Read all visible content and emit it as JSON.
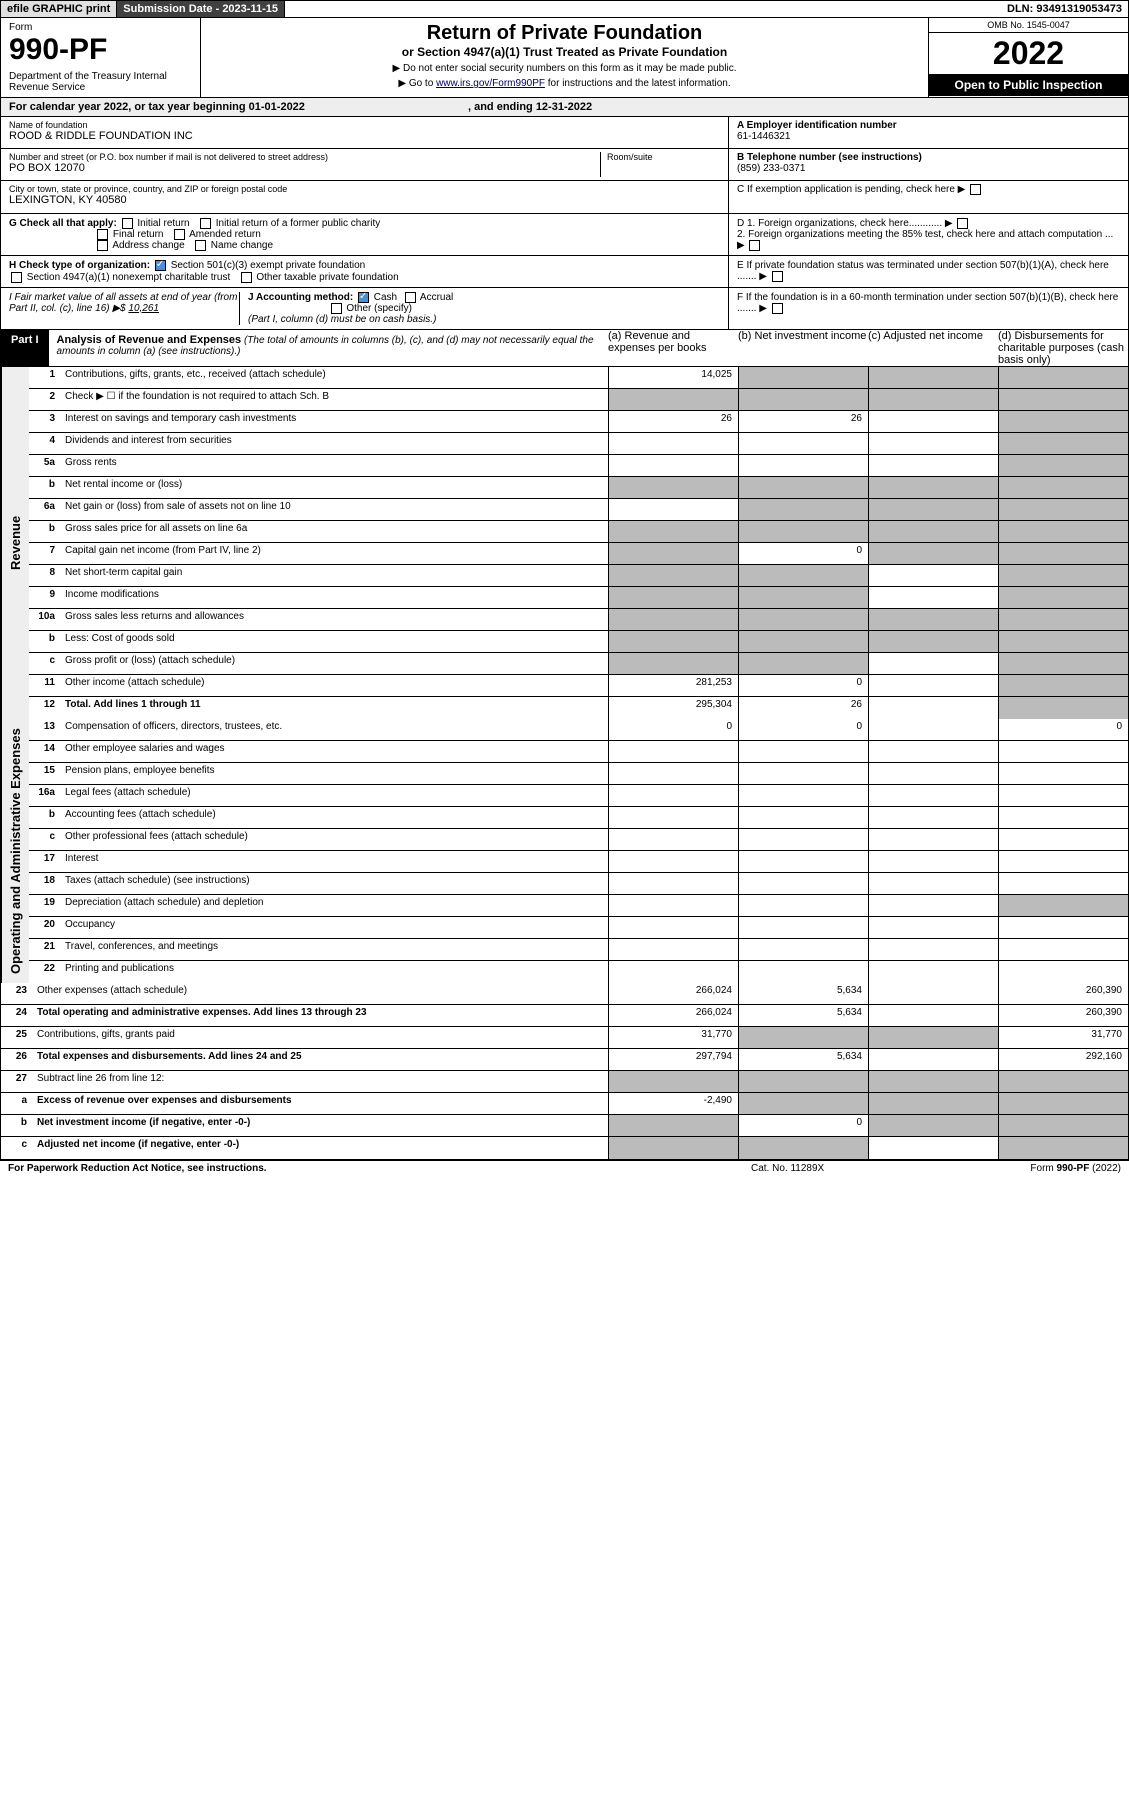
{
  "topbar": {
    "efile": "efile GRAPHIC print",
    "submission": "Submission Date - 2023-11-15",
    "dln": "DLN: 93491319053473"
  },
  "header": {
    "form": "Form",
    "formno": "990-PF",
    "dept": "Department of the Treasury\nInternal Revenue Service",
    "title": "Return of Private Foundation",
    "subtitle": "or Section 4947(a)(1) Trust Treated as Private Foundation",
    "note1": "▶ Do not enter social security numbers on this form as it may be made public.",
    "note2": "▶ Go to www.irs.gov/Form990PF for instructions and the latest information.",
    "omb": "OMB No. 1545-0047",
    "year": "2022",
    "open": "Open to Public Inspection"
  },
  "calyear": {
    "text": "For calendar year 2022, or tax year beginning 01-01-2022",
    "ending": ", and ending 12-31-2022"
  },
  "id": {
    "name_lbl": "Name of foundation",
    "name": "ROOD & RIDDLE FOUNDATION INC",
    "addr_lbl": "Number and street (or P.O. box number if mail is not delivered to street address)",
    "addr": "PO BOX 12070",
    "room_lbl": "Room/suite",
    "city_lbl": "City or town, state or province, country, and ZIP or foreign postal code",
    "city": "LEXINGTON, KY  40580",
    "ein_lbl": "A Employer identification number",
    "ein": "61-1446321",
    "tel_lbl": "B Telephone number (see instructions)",
    "tel": "(859) 233-0371",
    "c": "C If exemption application is pending, check here",
    "d1": "D 1. Foreign organizations, check here............",
    "d2": "2. Foreign organizations meeting the 85% test, check here and attach computation ...",
    "e": "E If private foundation status was terminated under section 507(b)(1)(A), check here .......",
    "f": "F If the foundation is in a 60-month termination under section 507(b)(1)(B), check here ......."
  },
  "checks": {
    "g_lbl": "G Check all that apply:",
    "g_opts": [
      "Initial return",
      "Initial return of a former public charity",
      "Final return",
      "Amended return",
      "Address change",
      "Name change"
    ],
    "h_lbl": "H Check type of organization:",
    "h_opts": [
      "Section 501(c)(3) exempt private foundation",
      "Section 4947(a)(1) nonexempt charitable trust",
      "Other taxable private foundation"
    ],
    "i_lbl": "I Fair market value of all assets at end of year (from Part II, col. (c), line 16) ▶$",
    "i_val": "10,261",
    "j_lbl": "J Accounting method:",
    "j_opts": [
      "Cash",
      "Accrual",
      "Other (specify)"
    ],
    "j_note": "(Part I, column (d) must be on cash basis.)"
  },
  "part1": {
    "label": "Part I",
    "title": "Analysis of Revenue and Expenses",
    "note": "(The total of amounts in columns (b), (c), and (d) may not necessarily equal the amounts in column (a) (see instructions).)",
    "cols": [
      "(a) Revenue and expenses per books",
      "(b) Net investment income",
      "(c) Adjusted net income",
      "(d) Disbursements for charitable purposes (cash basis only)"
    ]
  },
  "sides": {
    "rev": "Revenue",
    "ope": "Operating and Administrative Expenses"
  },
  "rows": [
    {
      "n": "1",
      "t": "Contributions, gifts, grants, etc., received (attach schedule)",
      "a": "14,025",
      "b": "",
      "c": "",
      "d": "",
      "sb": true,
      "sc": true,
      "sd": true
    },
    {
      "n": "2",
      "t": "Check ▶ ☐ if the foundation is not required to attach Sch. B",
      "a": "",
      "b": "",
      "c": "",
      "d": "",
      "sa": true,
      "sb": true,
      "sc": true,
      "sd": true
    },
    {
      "n": "3",
      "t": "Interest on savings and temporary cash investments",
      "a": "26",
      "b": "26",
      "c": "",
      "d": "",
      "sd": true
    },
    {
      "n": "4",
      "t": "Dividends and interest from securities",
      "a": "",
      "b": "",
      "c": "",
      "d": "",
      "sd": true
    },
    {
      "n": "5a",
      "t": "Gross rents",
      "a": "",
      "b": "",
      "c": "",
      "d": "",
      "sd": true
    },
    {
      "n": "b",
      "t": "Net rental income or (loss)",
      "a": "",
      "b": "",
      "c": "",
      "d": "",
      "sa": true,
      "sb": true,
      "sc": true,
      "sd": true
    },
    {
      "n": "6a",
      "t": "Net gain or (loss) from sale of assets not on line 10",
      "a": "",
      "b": "",
      "c": "",
      "d": "",
      "sb": true,
      "sc": true,
      "sd": true
    },
    {
      "n": "b",
      "t": "Gross sales price for all assets on line 6a",
      "a": "",
      "b": "",
      "c": "",
      "d": "",
      "sa": true,
      "sb": true,
      "sc": true,
      "sd": true
    },
    {
      "n": "7",
      "t": "Capital gain net income (from Part IV, line 2)",
      "a": "",
      "b": "0",
      "c": "",
      "d": "",
      "sa": true,
      "sc": true,
      "sd": true
    },
    {
      "n": "8",
      "t": "Net short-term capital gain",
      "a": "",
      "b": "",
      "c": "",
      "d": "",
      "sa": true,
      "sb": true,
      "sd": true
    },
    {
      "n": "9",
      "t": "Income modifications",
      "a": "",
      "b": "",
      "c": "",
      "d": "",
      "sa": true,
      "sb": true,
      "sd": true
    },
    {
      "n": "10a",
      "t": "Gross sales less returns and allowances",
      "a": "",
      "b": "",
      "c": "",
      "d": "",
      "sa": true,
      "sb": true,
      "sc": true,
      "sd": true
    },
    {
      "n": "b",
      "t": "Less: Cost of goods sold",
      "a": "",
      "b": "",
      "c": "",
      "d": "",
      "sa": true,
      "sb": true,
      "sc": true,
      "sd": true
    },
    {
      "n": "c",
      "t": "Gross profit or (loss) (attach schedule)",
      "a": "",
      "b": "",
      "c": "",
      "d": "",
      "sa": true,
      "sb": true,
      "sd": true
    },
    {
      "n": "11",
      "t": "Other income (attach schedule)",
      "a": "281,253",
      "b": "0",
      "c": "",
      "d": "",
      "sd": true
    },
    {
      "n": "12",
      "t": "Total. Add lines 1 through 11",
      "a": "295,304",
      "b": "26",
      "c": "",
      "d": "",
      "sd": true,
      "bold": true
    },
    {
      "n": "13",
      "t": "Compensation of officers, directors, trustees, etc.",
      "a": "0",
      "b": "0",
      "c": "",
      "d": "0"
    },
    {
      "n": "14",
      "t": "Other employee salaries and wages",
      "a": "",
      "b": "",
      "c": "",
      "d": ""
    },
    {
      "n": "15",
      "t": "Pension plans, employee benefits",
      "a": "",
      "b": "",
      "c": "",
      "d": ""
    },
    {
      "n": "16a",
      "t": "Legal fees (attach schedule)",
      "a": "",
      "b": "",
      "c": "",
      "d": ""
    },
    {
      "n": "b",
      "t": "Accounting fees (attach schedule)",
      "a": "",
      "b": "",
      "c": "",
      "d": ""
    },
    {
      "n": "c",
      "t": "Other professional fees (attach schedule)",
      "a": "",
      "b": "",
      "c": "",
      "d": ""
    },
    {
      "n": "17",
      "t": "Interest",
      "a": "",
      "b": "",
      "c": "",
      "d": ""
    },
    {
      "n": "18",
      "t": "Taxes (attach schedule) (see instructions)",
      "a": "",
      "b": "",
      "c": "",
      "d": ""
    },
    {
      "n": "19",
      "t": "Depreciation (attach schedule) and depletion",
      "a": "",
      "b": "",
      "c": "",
      "d": "",
      "sd": true
    },
    {
      "n": "20",
      "t": "Occupancy",
      "a": "",
      "b": "",
      "c": "",
      "d": ""
    },
    {
      "n": "21",
      "t": "Travel, conferences, and meetings",
      "a": "",
      "b": "",
      "c": "",
      "d": ""
    },
    {
      "n": "22",
      "t": "Printing and publications",
      "a": "",
      "b": "",
      "c": "",
      "d": ""
    },
    {
      "n": "23",
      "t": "Other expenses (attach schedule)",
      "a": "266,024",
      "b": "5,634",
      "c": "",
      "d": "260,390"
    },
    {
      "n": "24",
      "t": "Total operating and administrative expenses. Add lines 13 through 23",
      "a": "266,024",
      "b": "5,634",
      "c": "",
      "d": "260,390",
      "bold": true
    },
    {
      "n": "25",
      "t": "Contributions, gifts, grants paid",
      "a": "31,770",
      "b": "",
      "c": "",
      "d": "31,770",
      "sb": true,
      "sc": true
    },
    {
      "n": "26",
      "t": "Total expenses and disbursements. Add lines 24 and 25",
      "a": "297,794",
      "b": "5,634",
      "c": "",
      "d": "292,160",
      "bold": true
    },
    {
      "n": "27",
      "t": "Subtract line 26 from line 12:",
      "a": "",
      "b": "",
      "c": "",
      "d": "",
      "sa": true,
      "sb": true,
      "sc": true,
      "sd": true
    },
    {
      "n": "a",
      "t": "Excess of revenue over expenses and disbursements",
      "a": "-2,490",
      "b": "",
      "c": "",
      "d": "",
      "sb": true,
      "sc": true,
      "sd": true,
      "bold": true
    },
    {
      "n": "b",
      "t": "Net investment income (if negative, enter -0-)",
      "a": "",
      "b": "0",
      "c": "",
      "d": "",
      "sa": true,
      "sc": true,
      "sd": true,
      "bold": true
    },
    {
      "n": "c",
      "t": "Adjusted net income (if negative, enter -0-)",
      "a": "",
      "b": "",
      "c": "",
      "d": "",
      "sa": true,
      "sb": true,
      "sd": true,
      "bold": true
    }
  ],
  "footer": {
    "left": "For Paperwork Reduction Act Notice, see instructions.",
    "mid": "Cat. No. 11289X",
    "right": "Form 990-PF (2022)"
  }
}
